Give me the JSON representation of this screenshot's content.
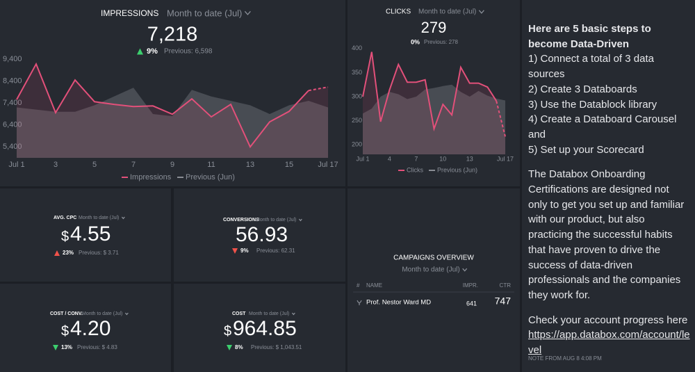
{
  "impressions": {
    "title": "IMPRESSIONS",
    "period": "Month to date (Jul)",
    "value": "7,218",
    "change": "9%",
    "trend": "up",
    "change_color": "#3ccf6e",
    "previous": "Previous: 6,598",
    "chart": {
      "type": "line",
      "categories": [
        "Jul 1",
        null,
        "3",
        null,
        "5",
        null,
        "7",
        null,
        "9",
        null,
        "11",
        null,
        "13",
        null,
        "15",
        null,
        "Jul 17"
      ],
      "ylim": [
        4900,
        10800
      ],
      "yticks": [
        {
          "value": 5400,
          "label": "5,400"
        },
        {
          "value": 6400,
          "label": "6,400"
        },
        {
          "value": 7400,
          "label": "7,400"
        },
        {
          "value": 8400,
          "label": "8,400"
        },
        {
          "value": 9400,
          "label": "9,400"
        }
      ],
      "series": [
        {
          "name": "Impressions",
          "color": "#e3507a",
          "values": [
            7560,
            9180,
            6960,
            8450,
            7460,
            7340,
            7240,
            7270,
            6890,
            7590,
            6770,
            7340,
            5400,
            6540,
            7020,
            7970,
            8130
          ]
        },
        {
          "name": "Previous (Jun)",
          "color": "#8a8d94",
          "values": [
            7200,
            7100,
            7000,
            7000,
            7300,
            7700,
            8100,
            6900,
            6800,
            8000,
            7700,
            7500,
            7300,
            6900,
            7300,
            7500,
            7200
          ]
        }
      ]
    }
  },
  "clicks": {
    "title": "CLICKS",
    "period": "Month to date (Jul)",
    "value": "279",
    "change": "0%",
    "previous": "Previous: 278",
    "chart": {
      "type": "line",
      "categories": [
        "Jul 1",
        null,
        null,
        "4",
        null,
        null,
        "7",
        null,
        null,
        "10",
        null,
        null,
        "13",
        null,
        null,
        null,
        "Jul 17"
      ],
      "ylim": [
        180,
        420
      ],
      "yticks": [
        200,
        250,
        300,
        350,
        400
      ],
      "series": [
        {
          "name": "Clicks",
          "color": "#e3507a",
          "values": [
            300,
            393,
            248,
            314,
            367,
            330,
            330,
            335,
            233,
            284,
            262,
            361,
            328,
            328,
            320,
            291,
            217
          ]
        },
        {
          "name": "Previous (Jun)",
          "color": "#8a8d94",
          "values": [
            265,
            275,
            300,
            310,
            305,
            295,
            300,
            315,
            318,
            322,
            325,
            310,
            300,
            312,
            302,
            296,
            292
          ]
        }
      ]
    }
  },
  "kpis": [
    {
      "title": "AVG. CPC",
      "period": "Month to date (Jul)",
      "currency": "$",
      "value": "4.55",
      "change": "23%",
      "trend": "up",
      "change_color": "#f0524a",
      "previous": "Previous: $ 3.71"
    },
    {
      "title": "CONVERSIONS",
      "period": "Month to date (Jul)",
      "value": "56.93",
      "change": "9%",
      "trend": "down",
      "change_color": "#f0524a",
      "previous": "Previous: 62.31"
    },
    {
      "title": "COST / CONV.",
      "period": "Month to date (Jul)",
      "currency": "$",
      "value": "4.20",
      "change": "13%",
      "trend": "down",
      "change_color": "#3ccf6e",
      "previous": "Previous: $ 4.83"
    },
    {
      "title": "COST",
      "period": "Month to date (Jul)",
      "currency": "$",
      "value": "964.85",
      "change": "8%",
      "trend": "down",
      "change_color": "#3ccf6e",
      "previous": "Previous: $ 1,043.51"
    }
  ],
  "campaigns": {
    "title": "CAMPAIGNS OVERVIEW",
    "period": "Month to date (Jul)",
    "columns": [
      "#",
      "NAME",
      "IMPR.",
      "CTR"
    ],
    "rows": [
      {
        "name": "Prof. Nestor Ward MD",
        "impr": "641",
        "ctr": "747"
      }
    ]
  },
  "note": {
    "heading": "Here are 5 basic steps to become Data-Driven",
    "steps": [
      "1) Connect a total of 3 data sources",
      "2) Create 3 Databoards",
      "3) Use the Datablock library",
      "4) Create a Databoard Carousel and",
      "5) Set up your Scorecard"
    ],
    "body": "The Databox Onboarding Certifications are designed not only to get you set up and familiar with our product, but also practicing the successful habits that have proven to drive the success of data-driven professionals and the companies they work for.",
    "progress_text": "Check your account progress here",
    "link": "https://app.databox.com/account/level",
    "footer": "NOTE FROM AUG 8 4:08 PM"
  }
}
